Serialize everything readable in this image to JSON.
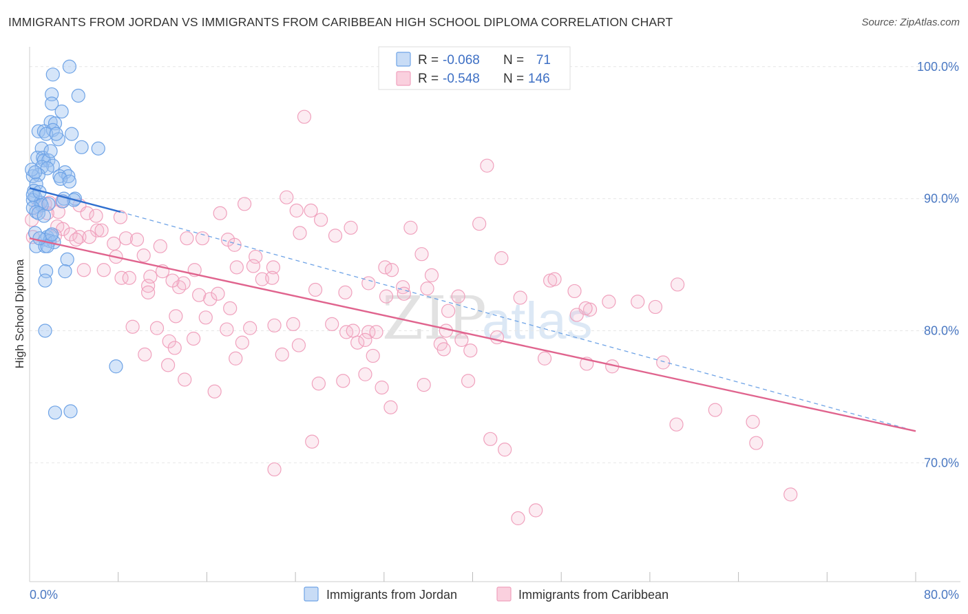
{
  "title": "IMMIGRANTS FROM JORDAN VS IMMIGRANTS FROM CARIBBEAN HIGH SCHOOL DIPLOMA CORRELATION CHART",
  "source": "Source: ZipAtlas.com",
  "watermark": {
    "zip": "ZIP",
    "atlas": "atlas"
  },
  "colors": {
    "jordan": "#6ea3e6",
    "jordan_line": "#2f6fcf",
    "caribbean": "#f0a1bd",
    "caribbean_line": "#e0648e",
    "tick": "#4a78c2"
  },
  "chart_data": {
    "type": "scatter",
    "title": "IMMIGRANTS FROM JORDAN VS IMMIGRANTS FROM CARIBBEAN HIGH SCHOOL DIPLOMA CORRELATION CHART",
    "xlabel": "",
    "ylabel": "High School Diploma",
    "xlim": [
      0,
      80
    ],
    "ylim": [
      61,
      101.5
    ],
    "x_tick_labels": [
      "0.0%",
      "80.0%"
    ],
    "y_ticks": [
      {
        "value": 70,
        "label": "70.0%"
      },
      {
        "value": 80,
        "label": "80.0%"
      },
      {
        "value": 90,
        "label": "90.0%"
      },
      {
        "value": 100,
        "label": "100.0%"
      }
    ],
    "legend": [
      {
        "series": "Immigrants from Jordan",
        "r_label": "R =",
        "r": "-0.068",
        "n_label": "N =",
        "n": "71"
      },
      {
        "series": "Immigrants from Caribbean",
        "r_label": "R =",
        "r": "-0.548",
        "n_label": "N =",
        "n": "146"
      }
    ],
    "series": [
      {
        "name": "Immigrants from Jordan",
        "trend": {
          "x": [
            0,
            8.2
          ],
          "y": [
            90.8,
            89.0
          ],
          "dashed_to": [
            80,
            72.4
          ]
        },
        "points": [
          [
            3.6,
            100
          ],
          [
            2.1,
            99.4
          ],
          [
            4.4,
            97.8
          ],
          [
            2.0,
            97.9
          ],
          [
            2.0,
            97.2
          ],
          [
            2.9,
            96.6
          ],
          [
            1.9,
            95.8
          ],
          [
            2.3,
            95.7
          ],
          [
            0.8,
            95.1
          ],
          [
            1.3,
            95.1
          ],
          [
            2.1,
            95.2
          ],
          [
            3.8,
            94.9
          ],
          [
            1.5,
            94.9
          ],
          [
            2.6,
            94.5
          ],
          [
            4.7,
            93.9
          ],
          [
            6.2,
            93.8
          ],
          [
            1.1,
            93.8
          ],
          [
            0.7,
            93.1
          ],
          [
            1.2,
            93.1
          ],
          [
            1.3,
            92.9
          ],
          [
            1.7,
            92.9
          ],
          [
            2.1,
            92.5
          ],
          [
            1.1,
            92.4
          ],
          [
            1.6,
            92.3
          ],
          [
            0.8,
            91.8
          ],
          [
            0.3,
            91.7
          ],
          [
            3.2,
            92.0
          ],
          [
            2.7,
            91.7
          ],
          [
            3.5,
            91.7
          ],
          [
            2.8,
            91.5
          ],
          [
            3.6,
            91.3
          ],
          [
            0.6,
            91.1
          ],
          [
            0.4,
            90.6
          ],
          [
            0.5,
            90.1
          ],
          [
            0.3,
            89.9
          ],
          [
            1.0,
            89.7
          ],
          [
            1.1,
            89.5
          ],
          [
            0.3,
            89.3
          ],
          [
            0.6,
            89.0
          ],
          [
            0.8,
            88.9
          ],
          [
            1.3,
            88.7
          ],
          [
            3.1,
            90.0
          ],
          [
            4.1,
            90.0
          ],
          [
            4.0,
            89.9
          ],
          [
            0.5,
            87.4
          ],
          [
            1.6,
            87.1
          ],
          [
            1.9,
            87.2
          ],
          [
            1.4,
            86.9
          ],
          [
            1.8,
            86.8
          ],
          [
            2.2,
            86.7
          ],
          [
            0.6,
            86.4
          ],
          [
            1.4,
            86.4
          ],
          [
            1.6,
            86.4
          ],
          [
            3.4,
            85.4
          ],
          [
            1.5,
            84.5
          ],
          [
            3.2,
            84.5
          ],
          [
            1.4,
            83.8
          ],
          [
            1.4,
            80.0
          ],
          [
            7.8,
            77.3
          ],
          [
            2.3,
            73.8
          ],
          [
            3.7,
            73.9
          ],
          [
            0.2,
            92.2
          ],
          [
            0.5,
            92.0
          ],
          [
            0.3,
            90.3
          ],
          [
            1.9,
            93.6
          ],
          [
            2.4,
            94.9
          ],
          [
            0.9,
            90.5
          ],
          [
            1.7,
            89.6
          ],
          [
            2.0,
            87.3
          ],
          [
            0.9,
            87.0
          ],
          [
            3.0,
            89.8
          ]
        ]
      },
      {
        "name": "Immigrants from Caribbean",
        "trend": {
          "x": [
            0,
            80
          ],
          "y": [
            87.0,
            72.4
          ]
        },
        "points": [
          [
            24.8,
            96.2
          ],
          [
            41.3,
            92.5
          ],
          [
            0.8,
            89.4
          ],
          [
            1.4,
            89.6
          ],
          [
            1.8,
            89.7
          ],
          [
            2.6,
            89.0
          ],
          [
            2.9,
            89.8
          ],
          [
            4.5,
            89.5
          ],
          [
            1.6,
            88.9
          ],
          [
            5.2,
            88.9
          ],
          [
            6.0,
            88.7
          ],
          [
            8.2,
            88.6
          ],
          [
            23.2,
            90.1
          ],
          [
            19.4,
            89.6
          ],
          [
            24.1,
            89.1
          ],
          [
            25.4,
            89.1
          ],
          [
            17.2,
            88.9
          ],
          [
            26.3,
            88.4
          ],
          [
            29.0,
            87.8
          ],
          [
            34.4,
            87.8
          ],
          [
            40.6,
            88.1
          ],
          [
            0.2,
            88.4
          ],
          [
            2.5,
            87.9
          ],
          [
            3.0,
            87.7
          ],
          [
            3.7,
            87.3
          ],
          [
            4.5,
            87.1
          ],
          [
            4.2,
            86.9
          ],
          [
            6.1,
            87.6
          ],
          [
            6.5,
            87.6
          ],
          [
            8.7,
            87.0
          ],
          [
            9.7,
            86.9
          ],
          [
            14.2,
            87.0
          ],
          [
            15.6,
            87.0
          ],
          [
            17.9,
            86.9
          ],
          [
            24.4,
            87.4
          ],
          [
            27.6,
            87.2
          ],
          [
            0.3,
            87.1
          ],
          [
            2.3,
            87.2
          ],
          [
            5.4,
            87.1
          ],
          [
            7.6,
            86.6
          ],
          [
            11.8,
            86.4
          ],
          [
            18.5,
            86.5
          ],
          [
            10.3,
            85.7
          ],
          [
            7.8,
            85.6
          ],
          [
            20.4,
            85.6
          ],
          [
            35.4,
            85.8
          ],
          [
            42.6,
            85.5
          ],
          [
            4.9,
            84.6
          ],
          [
            12.0,
            84.5
          ],
          [
            14.9,
            84.6
          ],
          [
            18.7,
            84.8
          ],
          [
            20.2,
            84.9
          ],
          [
            22.0,
            84.8
          ],
          [
            32.1,
            84.8
          ],
          [
            32.7,
            84.6
          ],
          [
            36.3,
            84.2
          ],
          [
            8.3,
            84.0
          ],
          [
            9.0,
            84.0
          ],
          [
            10.7,
            83.4
          ],
          [
            10.9,
            84.1
          ],
          [
            13.5,
            83.3
          ],
          [
            13.9,
            83.6
          ],
          [
            21.0,
            83.9
          ],
          [
            21.9,
            84.0
          ],
          [
            30.6,
            83.6
          ],
          [
            33.7,
            83.3
          ],
          [
            47.0,
            83.8
          ],
          [
            47.4,
            83.9
          ],
          [
            58.5,
            83.5
          ],
          [
            25.8,
            83.1
          ],
          [
            28.5,
            82.9
          ],
          [
            32.2,
            82.6
          ],
          [
            33.8,
            82.8
          ],
          [
            35.9,
            83.2
          ],
          [
            38.7,
            82.6
          ],
          [
            44.3,
            82.5
          ],
          [
            49.2,
            83.0
          ],
          [
            10.7,
            82.9
          ],
          [
            15.3,
            82.7
          ],
          [
            16.3,
            82.4
          ],
          [
            17.0,
            82.8
          ],
          [
            50.6,
            81.6
          ],
          [
            50.2,
            81.7
          ],
          [
            52.3,
            82.2
          ],
          [
            54.9,
            82.2
          ],
          [
            56.5,
            81.8
          ],
          [
            18.1,
            81.7
          ],
          [
            13.2,
            81.1
          ],
          [
            15.9,
            81.0
          ],
          [
            37.8,
            81.5
          ],
          [
            49.4,
            81.2
          ],
          [
            9.3,
            80.3
          ],
          [
            11.5,
            80.2
          ],
          [
            17.8,
            80.1
          ],
          [
            19.9,
            80.2
          ],
          [
            22.1,
            80.4
          ],
          [
            23.8,
            80.5
          ],
          [
            27.3,
            80.5
          ],
          [
            28.6,
            79.9
          ],
          [
            29.2,
            80.0
          ],
          [
            30.6,
            79.9
          ],
          [
            31.3,
            79.9
          ],
          [
            37.6,
            80.0
          ],
          [
            39.0,
            79.3
          ],
          [
            42.2,
            79.5
          ],
          [
            14.8,
            79.4
          ],
          [
            12.6,
            79.2
          ],
          [
            13.1,
            78.7
          ],
          [
            19.2,
            79.1
          ],
          [
            24.3,
            78.9
          ],
          [
            29.6,
            79.1
          ],
          [
            30.3,
            79.3
          ],
          [
            37.1,
            79.0
          ],
          [
            37.4,
            78.6
          ],
          [
            39.8,
            78.5
          ],
          [
            10.4,
            78.2
          ],
          [
            18.6,
            77.9
          ],
          [
            22.8,
            78.2
          ],
          [
            31.0,
            78.1
          ],
          [
            46.5,
            77.9
          ],
          [
            12.5,
            77.4
          ],
          [
            50.3,
            77.5
          ],
          [
            52.6,
            77.3
          ],
          [
            57.2,
            77.6
          ],
          [
            14.0,
            76.3
          ],
          [
            30.3,
            76.7
          ],
          [
            26.1,
            76.0
          ],
          [
            28.3,
            76.2
          ],
          [
            31.8,
            75.7
          ],
          [
            35.6,
            75.9
          ],
          [
            39.6,
            76.2
          ],
          [
            16.7,
            75.4
          ],
          [
            32.6,
            74.2
          ],
          [
            61.9,
            74.0
          ],
          [
            58.4,
            72.9
          ],
          [
            65.3,
            73.1
          ],
          [
            25.5,
            71.6
          ],
          [
            41.6,
            71.8
          ],
          [
            42.9,
            71.0
          ],
          [
            65.6,
            71.5
          ],
          [
            22.1,
            69.5
          ],
          [
            68.7,
            67.6
          ],
          [
            45.7,
            66.4
          ],
          [
            44.1,
            65.8
          ],
          [
            6.7,
            84.6
          ],
          [
            12.9,
            83.8
          ]
        ]
      }
    ]
  }
}
